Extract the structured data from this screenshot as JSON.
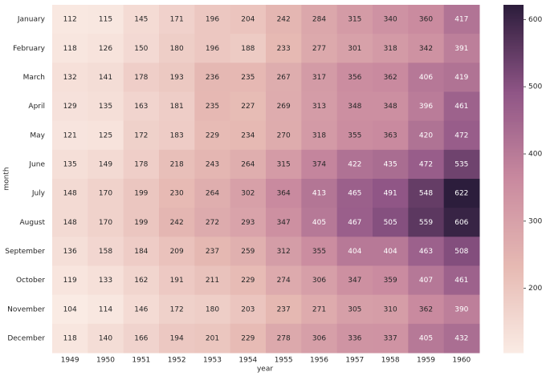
{
  "chart_data": {
    "type": "heatmap",
    "xlabel": "year",
    "ylabel": "month",
    "x": [
      "1949",
      "1950",
      "1951",
      "1952",
      "1953",
      "1954",
      "1955",
      "1956",
      "1957",
      "1958",
      "1959",
      "1960"
    ],
    "y": [
      "January",
      "February",
      "March",
      "April",
      "May",
      "June",
      "July",
      "August",
      "September",
      "October",
      "November",
      "December"
    ],
    "values": [
      [
        112,
        115,
        145,
        171,
        196,
        204,
        242,
        284,
        315,
        340,
        360,
        417
      ],
      [
        118,
        126,
        150,
        180,
        196,
        188,
        233,
        277,
        301,
        318,
        342,
        391
      ],
      [
        132,
        141,
        178,
        193,
        236,
        235,
        267,
        317,
        356,
        362,
        406,
        419
      ],
      [
        129,
        135,
        163,
        181,
        235,
        227,
        269,
        313,
        348,
        348,
        396,
        461
      ],
      [
        121,
        125,
        172,
        183,
        229,
        234,
        270,
        318,
        355,
        363,
        420,
        472
      ],
      [
        135,
        149,
        178,
        218,
        243,
        264,
        315,
        374,
        422,
        435,
        472,
        535
      ],
      [
        148,
        170,
        199,
        230,
        264,
        302,
        364,
        413,
        465,
        491,
        548,
        622
      ],
      [
        148,
        170,
        199,
        242,
        272,
        293,
        347,
        405,
        467,
        505,
        559,
        606
      ],
      [
        136,
        158,
        184,
        209,
        237,
        259,
        312,
        355,
        404,
        404,
        463,
        508
      ],
      [
        119,
        133,
        162,
        191,
        211,
        229,
        274,
        306,
        347,
        359,
        407,
        461
      ],
      [
        104,
        114,
        146,
        172,
        180,
        203,
        237,
        271,
        305,
        310,
        362,
        390
      ],
      [
        118,
        140,
        166,
        194,
        201,
        229,
        278,
        306,
        336,
        337,
        405,
        432
      ]
    ],
    "clim": [
      104,
      622
    ],
    "cticks": [
      200,
      300,
      400,
      500,
      600
    ],
    "colormap": [
      "#faebe4",
      "#e6b9b3",
      "#c98a9f",
      "#8f5586",
      "#2c1d3c"
    ]
  }
}
